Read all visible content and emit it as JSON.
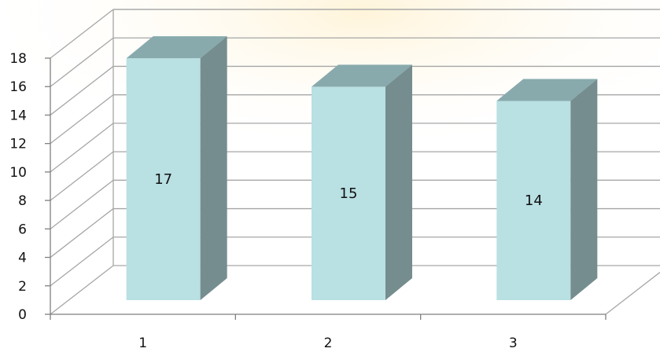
{
  "chart_data": {
    "type": "bar",
    "style": "3d-column",
    "categories": [
      "1",
      "2",
      "3"
    ],
    "series": [
      {
        "values": [
          17,
          15,
          14
        ]
      }
    ],
    "data_labels": [
      "17",
      "15",
      "14"
    ],
    "title": "",
    "xlabel": "",
    "ylabel": "",
    "ylim": [
      0,
      18
    ],
    "y_ticks": [
      "0",
      "2",
      "4",
      "6",
      "8",
      "10",
      "12",
      "14",
      "16",
      "18"
    ],
    "grid": true,
    "legend": "none"
  },
  "colors": {
    "bar_front": "#b9e0e3",
    "bar_top": "#88aaad",
    "bar_side": "#758d8e",
    "gridline": "#a6a6a6",
    "background_accent": "#fff3d6"
  }
}
